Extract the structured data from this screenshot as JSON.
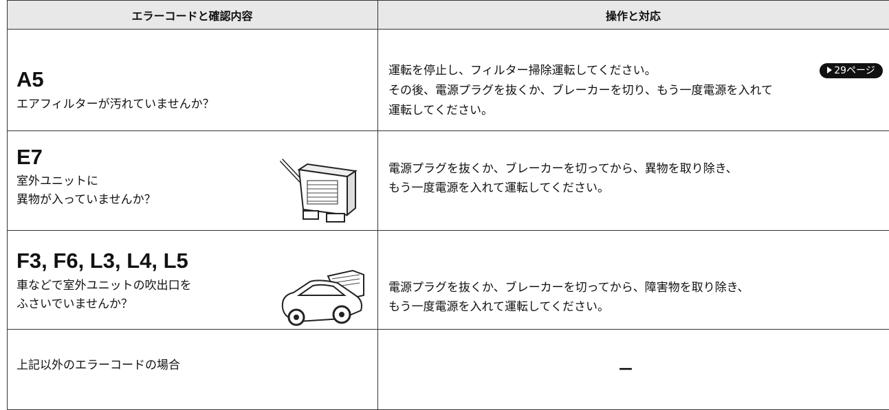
{
  "table": {
    "header": [
      "エラーコードと確認内容",
      "操作と対応"
    ],
    "rows": [
      {
        "code": "A5",
        "check": [
          "エアフィルターが汚れていませんか？"
        ],
        "action": [
          "運転を停止し、フィルター掃除運転してください。",
          "その後、電源プラグを抜くか、ブレーカーを切り、もう一度電源を入れて",
          "運転してください。"
        ],
        "reference": "29ページ"
      },
      {
        "code": "E7",
        "check": [
          "室外ユニットに",
          "異物が入っていませんか？"
        ],
        "action": [
          "電源プラグを抜くか、ブレーカーを切ってから、異物を取り除き、",
          "もう一度電源を入れて運転してください。"
        ]
      },
      {
        "code": "F3, F6, L3, L4, L5",
        "check": [
          "車などで室外ユニットの吹出口を",
          "ふさいでいませんか？"
        ],
        "action": [
          "電源プラグを抜くか、ブレーカーを切ってから、障害物を取り除き、",
          "もう一度電源を入れて運転してください。"
        ]
      },
      {
        "check": [
          "上記以外のエラーコードの場合"
        ],
        "action": [
          "—"
        ]
      }
    ]
  }
}
